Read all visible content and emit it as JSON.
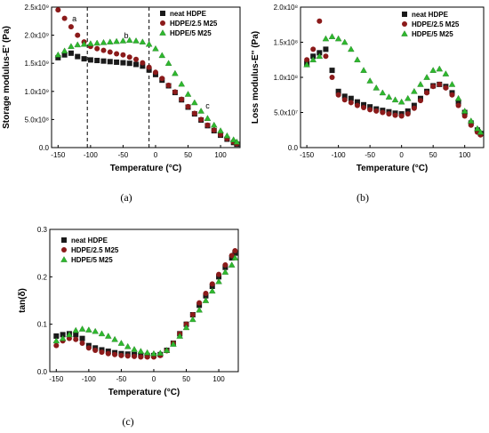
{
  "chart_data": [
    {
      "type": "scatter",
      "panel_caption": "(a)",
      "xlabel": "Temperature (°C)",
      "ylabel": "Storage modulus-E' (Pa)",
      "xlim": [
        -160,
        130
      ],
      "ylim": [
        0,
        2500000000
      ],
      "xticks": [
        -150,
        -100,
        -50,
        0,
        50,
        100
      ],
      "xtick_labels": [
        "-150",
        "-100",
        "-50",
        "0",
        "50",
        "100"
      ],
      "yticks": [
        0,
        500000000,
        1000000000,
        1500000000,
        2000000000,
        2500000000
      ],
      "ytick_labels": [
        "0.0",
        "5.0x10⁸",
        "1.0x10⁹",
        "1.5x10⁹",
        "2.0x10⁹",
        "2.5x10⁹"
      ],
      "legend_position": "top-right",
      "vlines": [
        -105,
        -10
      ],
      "annotations": [
        {
          "text": "a",
          "x": -125,
          "y": 2250000000
        },
        {
          "text": "b",
          "x": -45,
          "y": 1950000000
        },
        {
          "text": "c",
          "x": 80,
          "y": 700000000
        }
      ],
      "series": [
        {
          "name": "neat HDPE",
          "marker": "square",
          "color": "#1a1a1a",
          "x": [
            -150,
            -140,
            -130,
            -120,
            -110,
            -100,
            -90,
            -80,
            -70,
            -60,
            -50,
            -40,
            -30,
            -20,
            -10,
            0,
            10,
            20,
            30,
            40,
            50,
            60,
            70,
            80,
            90,
            100,
            110,
            120,
            125
          ],
          "y": [
            1600000000,
            1650000000,
            1680000000,
            1620000000,
            1580000000,
            1560000000,
            1550000000,
            1540000000,
            1530000000,
            1520000000,
            1510000000,
            1500000000,
            1480000000,
            1450000000,
            1380000000,
            1300000000,
            1200000000,
            1100000000,
            980000000,
            850000000,
            720000000,
            600000000,
            490000000,
            390000000,
            300000000,
            220000000,
            150000000,
            90000000,
            60000000
          ]
        },
        {
          "name": "HDPE/2.5 M25",
          "marker": "circle",
          "color": "#8b1a1a",
          "x": [
            -150,
            -140,
            -130,
            -120,
            -110,
            -100,
            -90,
            -80,
            -70,
            -60,
            -50,
            -40,
            -30,
            -20,
            -10,
            0,
            10,
            20,
            30,
            40,
            50,
            60,
            70,
            80,
            90,
            100,
            110,
            120,
            125
          ],
          "y": [
            2450000000,
            2300000000,
            2150000000,
            2000000000,
            1880000000,
            1800000000,
            1760000000,
            1730000000,
            1700000000,
            1670000000,
            1650000000,
            1610000000,
            1570000000,
            1510000000,
            1430000000,
            1340000000,
            1230000000,
            1110000000,
            990000000,
            860000000,
            730000000,
            610000000,
            500000000,
            400000000,
            310000000,
            230000000,
            160000000,
            100000000,
            70000000
          ]
        },
        {
          "name": "HDPE/5 M25",
          "marker": "triangle",
          "color": "#2eb82e",
          "x": [
            -150,
            -140,
            -130,
            -120,
            -110,
            -100,
            -90,
            -80,
            -70,
            -60,
            -50,
            -40,
            -30,
            -20,
            -10,
            0,
            10,
            20,
            30,
            40,
            50,
            60,
            70,
            80,
            90,
            100,
            110,
            120,
            125
          ],
          "y": [
            1650000000,
            1720000000,
            1800000000,
            1830000000,
            1840000000,
            1850000000,
            1860000000,
            1870000000,
            1880000000,
            1890000000,
            1900000000,
            1910000000,
            1900000000,
            1880000000,
            1840000000,
            1760000000,
            1640000000,
            1500000000,
            1320000000,
            1130000000,
            950000000,
            800000000,
            650000000,
            520000000,
            400000000,
            300000000,
            210000000,
            140000000,
            100000000
          ]
        }
      ]
    },
    {
      "type": "scatter",
      "panel_caption": "(b)",
      "xlabel": "Temperature (°C)",
      "ylabel": "Loss modulus-E'' (Pa)",
      "xlim": [
        -160,
        130
      ],
      "ylim": [
        0,
        200000000
      ],
      "xticks": [
        -150,
        -100,
        -50,
        0,
        50,
        100
      ],
      "xtick_labels": [
        "-150",
        "-100",
        "-50",
        "0",
        "50",
        "100"
      ],
      "yticks": [
        0,
        50000000,
        100000000,
        150000000,
        200000000
      ],
      "ytick_labels": [
        "0.0",
        "5.0x10⁷",
        "1.0x10⁸",
        "1.5x10⁸",
        "2.0x10⁸"
      ],
      "legend_position": "top-right",
      "series": [
        {
          "name": "neat HDPE",
          "marker": "square",
          "color": "#1a1a1a",
          "x": [
            -150,
            -140,
            -130,
            -120,
            -110,
            -100,
            -90,
            -80,
            -70,
            -60,
            -50,
            -40,
            -30,
            -20,
            -10,
            0,
            10,
            20,
            30,
            40,
            50,
            60,
            70,
            80,
            90,
            100,
            110,
            120,
            125
          ],
          "y": [
            120000000,
            130000000,
            135000000,
            140000000,
            110000000,
            80000000,
            73000000,
            70000000,
            65000000,
            61000000,
            58000000,
            55000000,
            53000000,
            51000000,
            49000000,
            48000000,
            52000000,
            60000000,
            70000000,
            80000000,
            88000000,
            90000000,
            87000000,
            78000000,
            65000000,
            50000000,
            35000000,
            25000000,
            20000000
          ]
        },
        {
          "name": "HDPE/2.5 M25",
          "marker": "circle",
          "color": "#8b1a1a",
          "x": [
            -150,
            -140,
            -130,
            -120,
            -110,
            -100,
            -90,
            -80,
            -70,
            -60,
            -50,
            -40,
            -30,
            -20,
            -10,
            0,
            10,
            20,
            30,
            40,
            50,
            60,
            70,
            80,
            90,
            100,
            110,
            120,
            125
          ],
          "y": [
            125000000,
            140000000,
            180000000,
            130000000,
            100000000,
            75000000,
            68000000,
            64000000,
            60000000,
            57000000,
            54000000,
            52000000,
            50000000,
            48000000,
            46000000,
            45000000,
            48000000,
            56000000,
            67000000,
            78000000,
            87000000,
            90000000,
            85000000,
            75000000,
            60000000,
            45000000,
            32000000,
            22000000,
            18000000
          ]
        },
        {
          "name": "HDPE/5 M25",
          "marker": "triangle",
          "color": "#2eb82e",
          "x": [
            -150,
            -140,
            -130,
            -120,
            -110,
            -100,
            -90,
            -80,
            -70,
            -60,
            -50,
            -40,
            -30,
            -20,
            -10,
            0,
            10,
            20,
            30,
            40,
            50,
            60,
            70,
            80,
            90,
            100,
            110,
            120,
            125
          ],
          "y": [
            118000000,
            125000000,
            130000000,
            155000000,
            158000000,
            155000000,
            150000000,
            140000000,
            125000000,
            110000000,
            95000000,
            85000000,
            78000000,
            72000000,
            68000000,
            65000000,
            70000000,
            80000000,
            90000000,
            100000000,
            110000000,
            112000000,
            105000000,
            90000000,
            70000000,
            52000000,
            38000000,
            27000000,
            22000000
          ]
        }
      ]
    },
    {
      "type": "scatter",
      "panel_caption": "(c)",
      "xlabel": "Temperature (°C)",
      "ylabel": "tan(δ)",
      "xlim": [
        -160,
        130
      ],
      "ylim": [
        0,
        0.3
      ],
      "xticks": [
        -150,
        -100,
        -50,
        0,
        50,
        100
      ],
      "xtick_labels": [
        "-150",
        "-100",
        "-50",
        "0",
        "50",
        "100"
      ],
      "yticks": [
        0,
        0.1,
        0.2,
        0.3
      ],
      "ytick_labels": [
        "0.0",
        "0.1",
        "0.2",
        "0.3"
      ],
      "legend_position": "top-left",
      "series": [
        {
          "name": "neat HDPE",
          "marker": "square",
          "color": "#1a1a1a",
          "x": [
            -150,
            -140,
            -130,
            -120,
            -110,
            -100,
            -90,
            -80,
            -70,
            -60,
            -50,
            -40,
            -30,
            -20,
            -10,
            0,
            10,
            20,
            30,
            40,
            50,
            60,
            70,
            80,
            90,
            100,
            110,
            120,
            125
          ],
          "y": [
            0.075,
            0.078,
            0.08,
            0.078,
            0.07,
            0.055,
            0.05,
            0.046,
            0.043,
            0.04,
            0.038,
            0.037,
            0.036,
            0.035,
            0.034,
            0.034,
            0.036,
            0.045,
            0.06,
            0.08,
            0.1,
            0.12,
            0.14,
            0.16,
            0.18,
            0.2,
            0.22,
            0.24,
            0.25
          ]
        },
        {
          "name": "HDPE/2.5 M25",
          "marker": "circle",
          "color": "#8b1a1a",
          "x": [
            -150,
            -140,
            -130,
            -120,
            -110,
            -100,
            -90,
            -80,
            -70,
            -60,
            -50,
            -40,
            -30,
            -20,
            -10,
            0,
            10,
            20,
            30,
            40,
            50,
            60,
            70,
            80,
            90,
            100,
            110,
            120,
            125
          ],
          "y": [
            0.055,
            0.065,
            0.07,
            0.068,
            0.06,
            0.05,
            0.045,
            0.041,
            0.038,
            0.036,
            0.034,
            0.033,
            0.032,
            0.031,
            0.031,
            0.031,
            0.034,
            0.044,
            0.06,
            0.08,
            0.1,
            0.12,
            0.145,
            0.165,
            0.185,
            0.205,
            0.225,
            0.245,
            0.255
          ]
        },
        {
          "name": "HDPE/5 M25",
          "marker": "triangle",
          "color": "#2eb82e",
          "x": [
            -150,
            -140,
            -130,
            -120,
            -110,
            -100,
            -90,
            -80,
            -70,
            -60,
            -50,
            -40,
            -30,
            -20,
            -10,
            0,
            10,
            20,
            30,
            40,
            50,
            60,
            70,
            80,
            90,
            100,
            110,
            120,
            125
          ],
          "y": [
            0.065,
            0.07,
            0.078,
            0.087,
            0.09,
            0.088,
            0.085,
            0.08,
            0.075,
            0.068,
            0.06,
            0.053,
            0.047,
            0.043,
            0.04,
            0.038,
            0.039,
            0.045,
            0.058,
            0.075,
            0.093,
            0.11,
            0.13,
            0.15,
            0.17,
            0.19,
            0.21,
            0.225,
            0.24
          ]
        }
      ]
    }
  ]
}
